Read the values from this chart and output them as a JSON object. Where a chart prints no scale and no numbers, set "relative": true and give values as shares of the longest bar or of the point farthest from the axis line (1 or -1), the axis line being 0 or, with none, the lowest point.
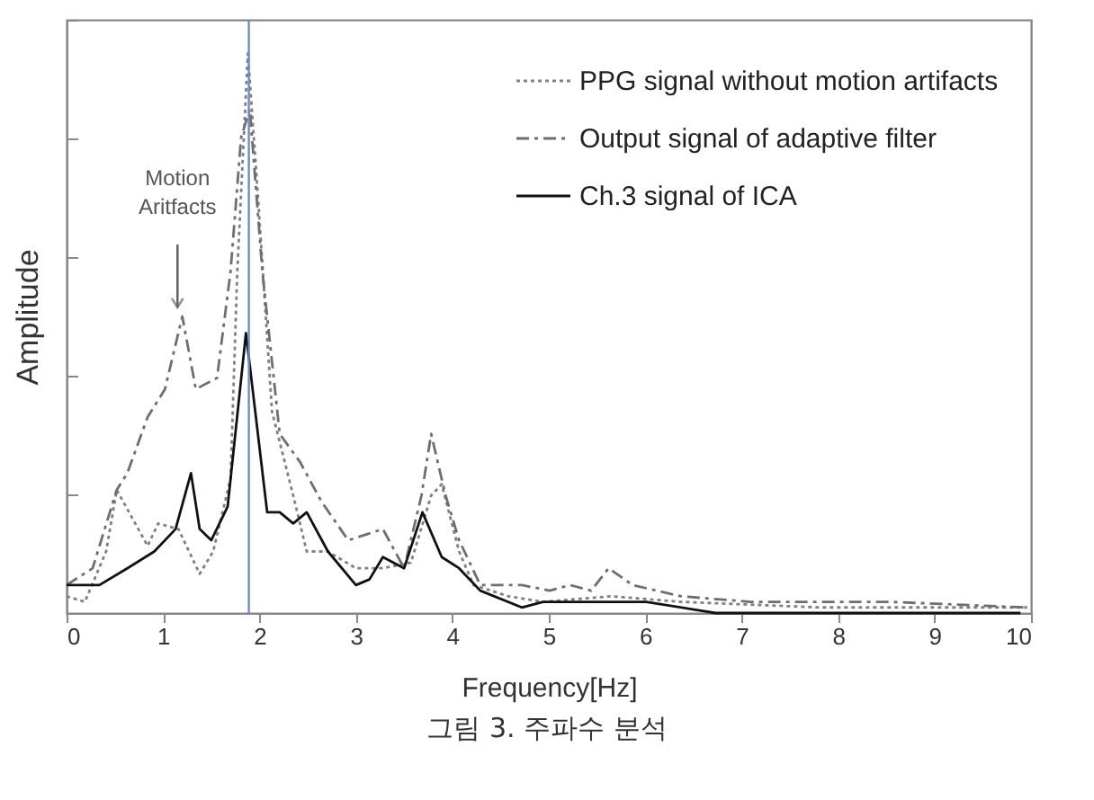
{
  "chart_data": {
    "type": "line",
    "relative": true,
    "xlabel": "Frequency[Hz]",
    "ylabel": "Amplitude",
    "xlim": [
      0,
      10
    ],
    "xticks": [
      0,
      1,
      2,
      3,
      4,
      5,
      6,
      7,
      8,
      9,
      10
    ],
    "grid": false,
    "legend": "top right",
    "series": [
      {
        "name": "PPG signal without motion artifacts",
        "color": "#808080",
        "line_style": "dotted",
        "x": [
          0,
          0.19,
          0.41,
          0.52,
          0.84,
          0.95,
          1.16,
          1.38,
          1.52,
          1.7,
          1.77,
          1.88,
          1.99,
          2.13,
          2.35,
          2.49,
          2.71,
          3.0,
          3.28,
          3.57,
          3.78,
          3.89,
          4.07,
          4.22,
          4.58,
          4.94,
          5.65,
          6.37,
          7.81,
          9.96
        ],
        "values": [
          0.03,
          0.02,
          0.11,
          0.22,
          0.12,
          0.16,
          0.15,
          0.07,
          0.11,
          0.24,
          0.61,
          1,
          0.73,
          0.36,
          0.21,
          0.11,
          0.11,
          0.08,
          0.08,
          0.09,
          0.21,
          0.23,
          0.11,
          0.05,
          0.03,
          0.02,
          0.03,
          0.02,
          0.01,
          0.01
        ]
      },
      {
        "name": "Output signal of adaptive filter",
        "color": "#6e6e6e",
        "line_style": "dashed",
        "x": [
          0,
          0.27,
          0.52,
          0.63,
          0.84,
          1.02,
          1.2,
          1.34,
          1.56,
          1.7,
          1.81,
          1.9,
          2.03,
          2.21,
          2.42,
          2.64,
          2.92,
          3.28,
          3.5,
          3.68,
          3.78,
          3.93,
          4.07,
          4.29,
          4.72,
          5.01,
          5.22,
          5.44,
          5.62,
          5.87,
          6.37,
          7.09,
          8.53,
          9.96
        ],
        "values": [
          0.05,
          0.08,
          0.22,
          0.25,
          0.35,
          0.4,
          0.53,
          0.4,
          0.42,
          0.61,
          0.85,
          0.9,
          0.61,
          0.32,
          0.27,
          0.2,
          0.13,
          0.15,
          0.08,
          0.21,
          0.32,
          0.21,
          0.13,
          0.05,
          0.05,
          0.04,
          0.05,
          0.04,
          0.08,
          0.05,
          0.03,
          0.02,
          0.02,
          0.01
        ]
      },
      {
        "name": "Ch.3 signal of ICA",
        "color": "#111111",
        "line_style": "solid",
        "x": [
          0,
          0.34,
          0.63,
          0.91,
          1.13,
          1.29,
          1.38,
          1.5,
          1.67,
          1.86,
          2.08,
          2.21,
          2.35,
          2.49,
          2.71,
          3.0,
          3.14,
          3.28,
          3.5,
          3.69,
          3.89,
          4.07,
          4.29,
          4.72,
          4.94,
          5.22,
          5.65,
          6.01,
          6.73,
          7.81,
          9.89
        ],
        "values": [
          0.05,
          0.05,
          0.08,
          0.11,
          0.15,
          0.25,
          0.15,
          0.13,
          0.19,
          0.5,
          0.18,
          0.18,
          0.16,
          0.18,
          0.11,
          0.05,
          0.06,
          0.1,
          0.08,
          0.18,
          0.1,
          0.08,
          0.04,
          0.01,
          0.02,
          0.02,
          0.02,
          0.02,
          0,
          0,
          0
        ]
      }
    ],
    "ref_lines": [
      {
        "axis": "x",
        "value": 1.89,
        "color": "#6a8fc0"
      }
    ],
    "annotations": [
      {
        "text": "Motion Aritfacts",
        "x": 1.15,
        "y": 0.53
      },
      "그림 3. 주파수 분석"
    ]
  }
}
